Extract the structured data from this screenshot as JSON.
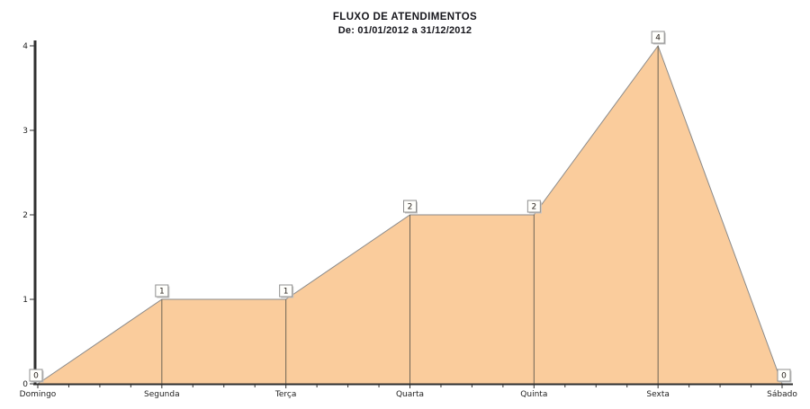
{
  "header": {
    "title": "FLUXO DE ATENDIMENTOS",
    "subtitle": "De: 01/01/2012 a 31/12/2012"
  },
  "chart_data": {
    "type": "area",
    "title": "FLUXO DE ATENDIMENTOS",
    "subtitle": "De: 01/01/2012 a 31/12/2012",
    "categories": [
      "Domingo",
      "Segunda",
      "Terça",
      "Quarta",
      "Quinta",
      "Sexta",
      "Sábado"
    ],
    "values": [
      0,
      1,
      1,
      2,
      2,
      4,
      0
    ],
    "point_labels": [
      "0",
      "1",
      "1",
      "2",
      "2",
      "4",
      "0"
    ],
    "xlabel": "",
    "ylabel": "",
    "ylim": [
      0,
      4
    ],
    "yticks": [
      0,
      1,
      2,
      3,
      4
    ],
    "x_minor_ticks_per_interval": 3,
    "grid": false,
    "legend_position": "none",
    "colors": {
      "background": "#FFFFFF",
      "area_fill": "#FACC9C",
      "area_outline": "#8A8A8A",
      "drop_line": "#6E6455",
      "axis": "#2F2F2F",
      "tick": "#2F2F2F",
      "label_text": "#1E1E1E",
      "mark_bg": "#FFFFFC",
      "mark_border": "#8F8F8F",
      "mark_shadow": "#C4C4C4",
      "mark_text": "#27211B"
    }
  }
}
